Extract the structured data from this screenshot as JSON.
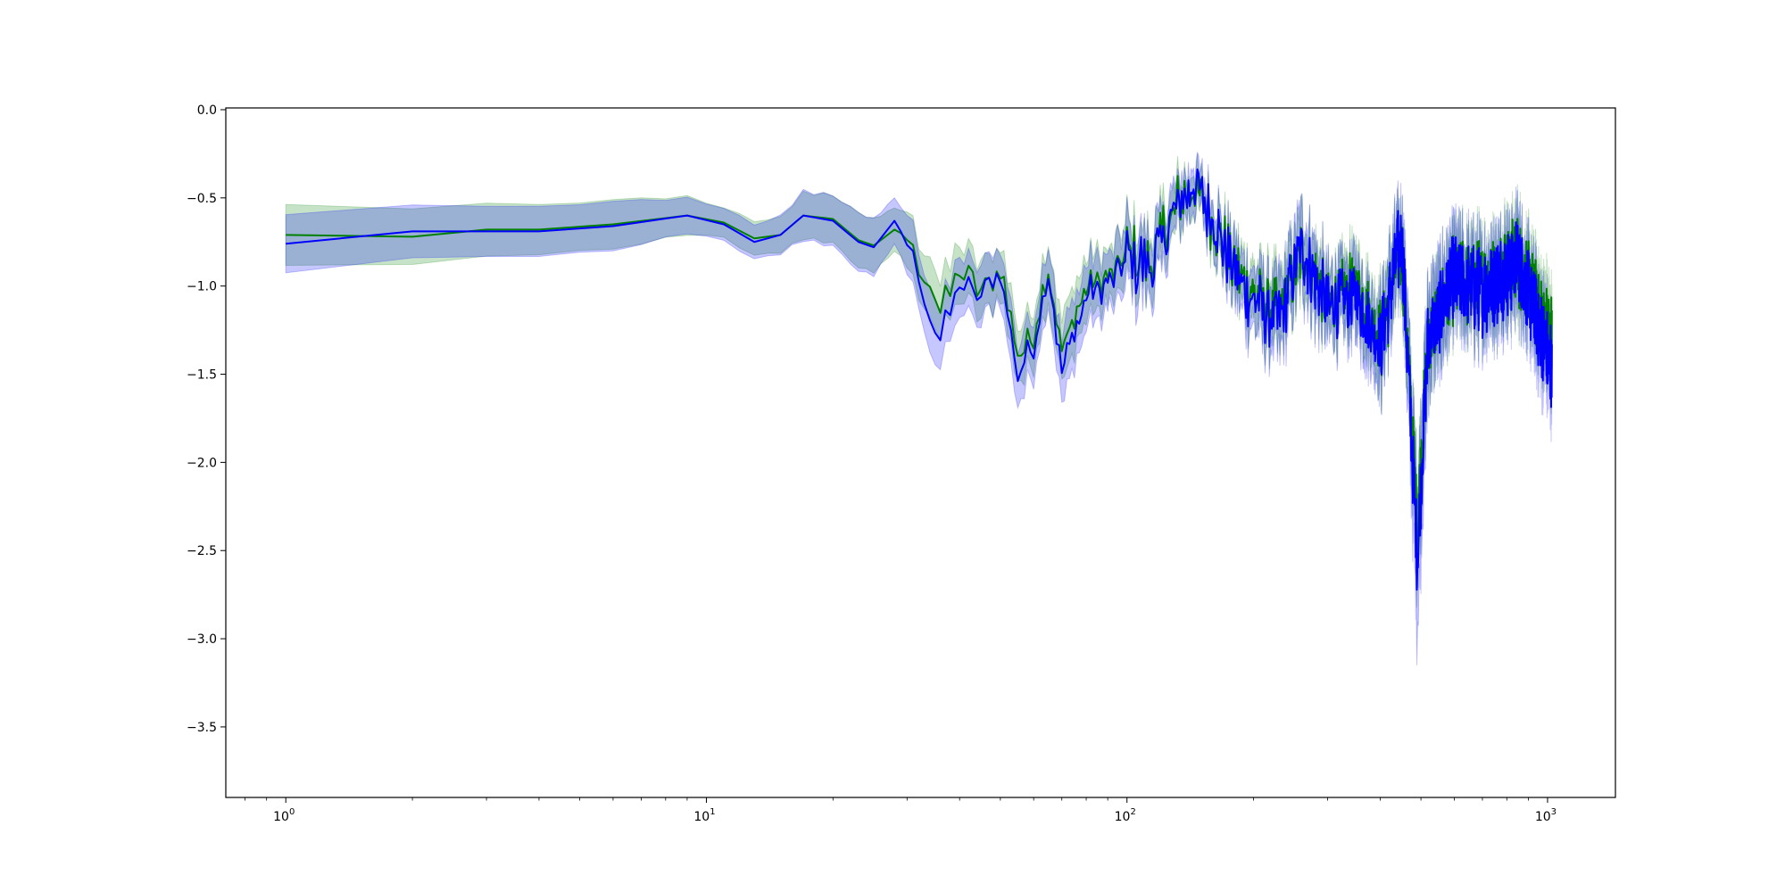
{
  "chart_data": {
    "type": "line",
    "title": "",
    "xlabel": "",
    "ylabel": "",
    "x_scale": "log",
    "xlim": [
      0.72,
      1450
    ],
    "ylim": [
      -3.9,
      0.01
    ],
    "grid": false,
    "legend": "none",
    "y_ticks": [
      {
        "value": 0.0,
        "label": "0.0"
      },
      {
        "value": -0.5,
        "label": "−0.5"
      },
      {
        "value": -1.0,
        "label": "−1.0"
      },
      {
        "value": -1.5,
        "label": "−1.5"
      },
      {
        "value": -2.0,
        "label": "−2.0"
      },
      {
        "value": -2.5,
        "label": "−2.5"
      },
      {
        "value": -3.0,
        "label": "−3.0"
      },
      {
        "value": -3.5,
        "label": "−3.5"
      }
    ],
    "x_ticks": [
      {
        "value": 1,
        "base": "10",
        "exp": "0"
      },
      {
        "value": 10,
        "base": "10",
        "exp": "1"
      },
      {
        "value": 100,
        "base": "10",
        "exp": "2"
      },
      {
        "value": 1000,
        "base": "10",
        "exp": "3"
      }
    ],
    "series": [
      {
        "color": "#008000",
        "band_color": "#008000",
        "band_opacity": 0.22,
        "anchors": [
          [
            1,
            -0.71,
            0.23
          ],
          [
            2,
            -0.72,
            0.21
          ],
          [
            3,
            -0.68,
            0.2
          ],
          [
            4,
            -0.68,
            0.19
          ],
          [
            6,
            -0.65,
            0.17
          ],
          [
            9,
            -0.6,
            0.13
          ],
          [
            11,
            -0.64,
            0.11
          ],
          [
            13,
            -0.73,
            0.12
          ],
          [
            15,
            -0.71,
            0.12
          ],
          [
            17,
            -0.6,
            0.14
          ],
          [
            20,
            -0.62,
            0.16
          ],
          [
            23,
            -0.74,
            0.17
          ],
          [
            25,
            -0.77,
            0.16
          ],
          [
            28,
            -0.68,
            0.16
          ],
          [
            30,
            -0.72,
            0.17
          ],
          [
            33,
            -0.93,
            0.17
          ],
          [
            36,
            -1.14,
            0.18
          ],
          [
            40,
            -0.92,
            0.18
          ],
          [
            45,
            -1.02,
            0.17
          ],
          [
            50,
            -0.9,
            0.17
          ],
          [
            55,
            -1.4,
            0.18
          ],
          [
            60,
            -1.28,
            0.18
          ],
          [
            65,
            -0.88,
            0.18
          ],
          [
            70,
            -1.38,
            0.19
          ],
          [
            80,
            -1.0,
            0.18
          ],
          [
            90,
            -0.96,
            0.17
          ],
          [
            100,
            -0.82,
            0.17
          ],
          [
            115,
            -0.85,
            0.16
          ],
          [
            130,
            -0.55,
            0.14
          ],
          [
            145,
            -0.45,
            0.12
          ],
          [
            160,
            -0.62,
            0.13
          ],
          [
            180,
            -0.9,
            0.16
          ],
          [
            200,
            -1.05,
            0.18
          ],
          [
            230,
            -1.15,
            0.2
          ],
          [
            260,
            -0.8,
            0.2
          ],
          [
            300,
            -1.1,
            0.2
          ],
          [
            350,
            -1.0,
            0.2
          ],
          [
            400,
            -1.3,
            0.22
          ],
          [
            450,
            -0.75,
            0.22
          ],
          [
            490,
            -2.35,
            0.3
          ],
          [
            520,
            -1.3,
            0.25
          ],
          [
            600,
            -0.95,
            0.22
          ],
          [
            700,
            -1.0,
            0.2
          ],
          [
            850,
            -0.85,
            0.2
          ],
          [
            1020,
            -1.3,
            0.2
          ]
        ]
      },
      {
        "color": "#0000ff",
        "band_color": "#0000ff",
        "band_opacity": 0.22,
        "anchors": [
          [
            1,
            -0.76,
            0.22
          ],
          [
            2,
            -0.69,
            0.2
          ],
          [
            3,
            -0.69,
            0.19
          ],
          [
            4,
            -0.69,
            0.19
          ],
          [
            6,
            -0.66,
            0.17
          ],
          [
            9,
            -0.6,
            0.12
          ],
          [
            11,
            -0.65,
            0.12
          ],
          [
            13,
            -0.75,
            0.12
          ],
          [
            15,
            -0.71,
            0.13
          ],
          [
            17,
            -0.6,
            0.15
          ],
          [
            20,
            -0.63,
            0.17
          ],
          [
            23,
            -0.75,
            0.18
          ],
          [
            25,
            -0.78,
            0.17
          ],
          [
            28,
            -0.63,
            0.17
          ],
          [
            30,
            -0.75,
            0.18
          ],
          [
            33,
            -1.05,
            0.18
          ],
          [
            36,
            -1.3,
            0.2
          ],
          [
            40,
            -0.99,
            0.19
          ],
          [
            45,
            -1.06,
            0.18
          ],
          [
            50,
            -0.92,
            0.18
          ],
          [
            55,
            -1.5,
            0.2
          ],
          [
            60,
            -1.35,
            0.19
          ],
          [
            65,
            -0.9,
            0.19
          ],
          [
            70,
            -1.5,
            0.2
          ],
          [
            80,
            -1.05,
            0.19
          ],
          [
            90,
            -0.99,
            0.18
          ],
          [
            100,
            -0.85,
            0.18
          ],
          [
            115,
            -0.88,
            0.17
          ],
          [
            130,
            -0.58,
            0.15
          ],
          [
            145,
            -0.42,
            0.13
          ],
          [
            160,
            -0.62,
            0.14
          ],
          [
            180,
            -0.92,
            0.17
          ],
          [
            200,
            -1.08,
            0.19
          ],
          [
            230,
            -1.2,
            0.21
          ],
          [
            260,
            -0.78,
            0.21
          ],
          [
            300,
            -1.12,
            0.21
          ],
          [
            350,
            -1.05,
            0.21
          ],
          [
            400,
            -1.35,
            0.23
          ],
          [
            450,
            -0.7,
            0.23
          ],
          [
            490,
            -2.55,
            0.45
          ],
          [
            520,
            -1.3,
            0.27
          ],
          [
            600,
            -0.95,
            0.23
          ],
          [
            700,
            -1.05,
            0.21
          ],
          [
            850,
            -0.85,
            0.21
          ],
          [
            1020,
            -1.45,
            0.21
          ]
        ]
      }
    ]
  }
}
